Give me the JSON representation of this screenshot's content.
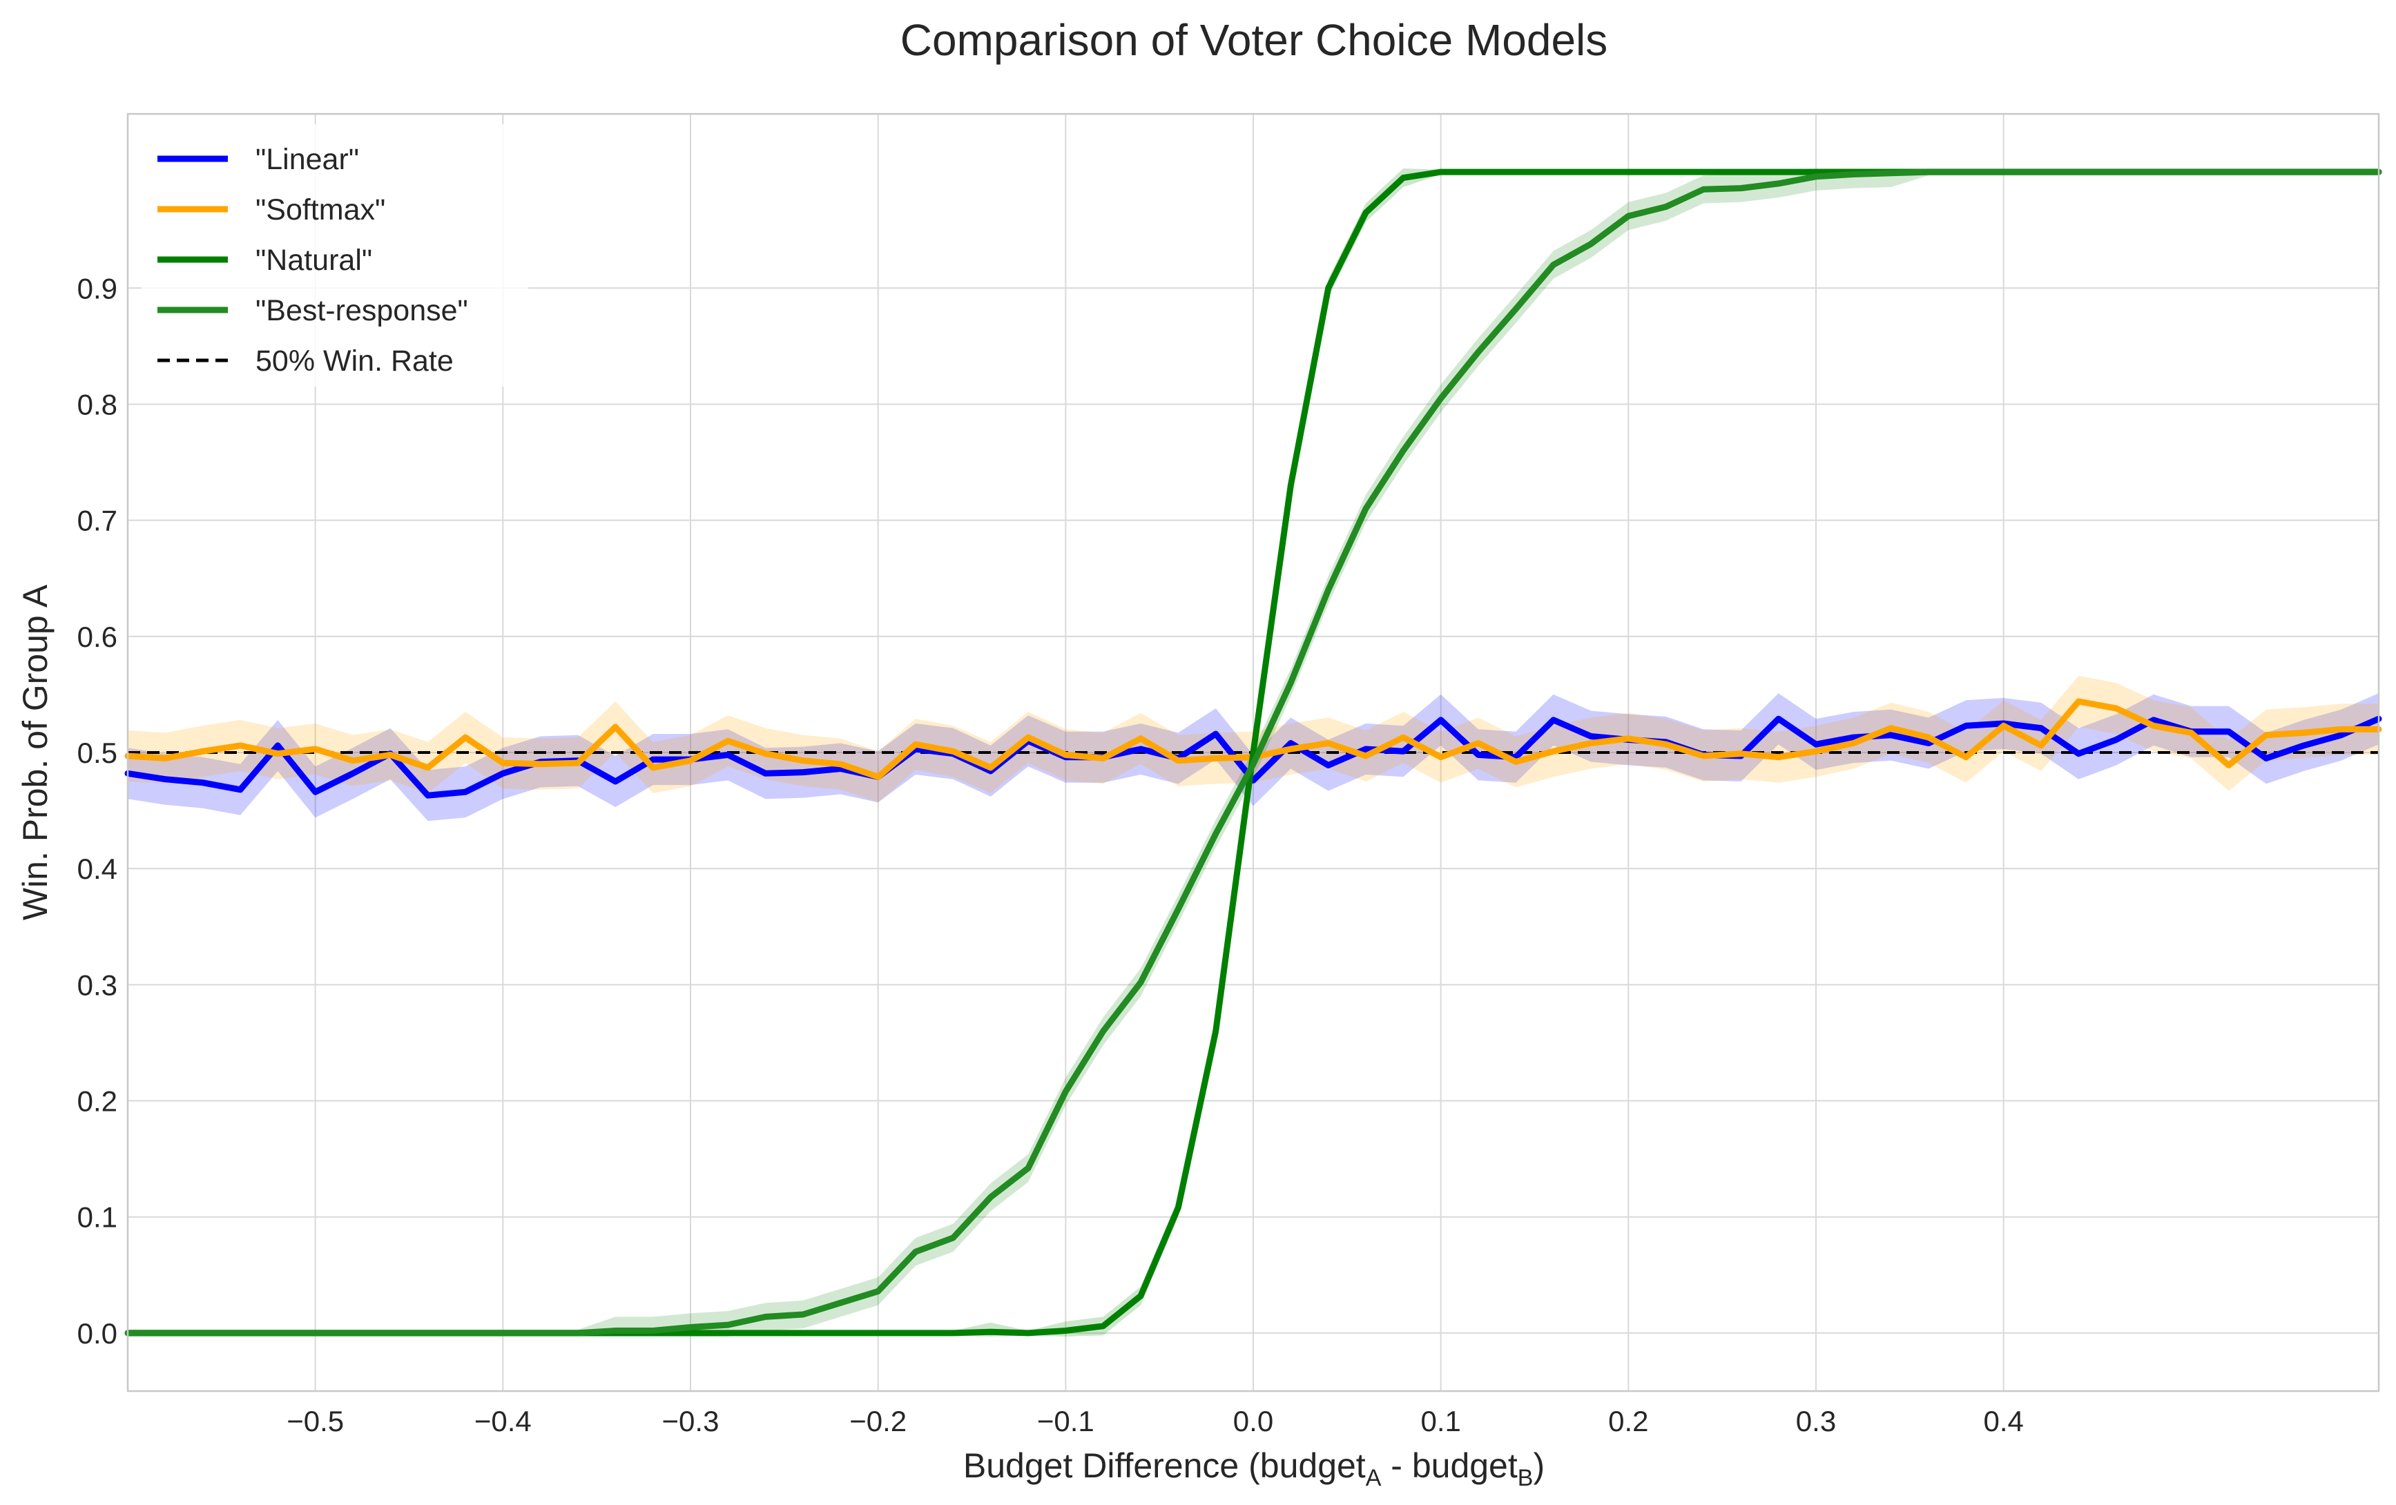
{
  "chart_data": {
    "type": "line",
    "title": "Comparison of Voter Choice Models",
    "xlabel_main": "Budget Difference (budget",
    "xlabel_sub_a": "A",
    "xlabel_mid": " - budget",
    "xlabel_sub_b": "B",
    "xlabel_end": ")",
    "ylabel": "Win. Prob. of Group A",
    "xlim": [
      -0.6,
      0.6
    ],
    "ylim": [
      -0.05,
      1.05
    ],
    "xticks": [
      -0.5,
      -0.4,
      -0.3,
      -0.2,
      -0.1,
      0.0,
      0.1,
      0.2,
      0.3,
      0.4
    ],
    "xtick_labels": [
      "−0.5",
      "−0.4",
      "−0.3",
      "−0.2",
      "−0.1",
      "0.0",
      "0.1",
      "0.2",
      "0.3",
      "0.4"
    ],
    "yticks": [
      0.0,
      0.1,
      0.2,
      0.3,
      0.4,
      0.5,
      0.6,
      0.7,
      0.8,
      0.9
    ],
    "ytick_labels": [
      "0.0",
      "0.1",
      "0.2",
      "0.3",
      "0.4",
      "0.5",
      "0.6",
      "0.7",
      "0.8",
      "0.9"
    ],
    "grid": true,
    "legend_position": "top-left",
    "x": [
      -0.6,
      -0.58,
      -0.56,
      -0.54,
      -0.52,
      -0.5,
      -0.48,
      -0.46,
      -0.44,
      -0.42,
      -0.4,
      -0.38,
      -0.36,
      -0.34,
      -0.32,
      -0.3,
      -0.28,
      -0.26,
      -0.24,
      -0.22,
      -0.2,
      -0.18,
      -0.16,
      -0.14,
      -0.12,
      -0.1,
      -0.08,
      -0.06,
      -0.04,
      -0.02,
      0.0,
      0.02,
      0.04,
      0.06,
      0.08,
      0.1,
      0.12,
      0.14,
      0.16,
      0.18,
      0.2,
      0.22,
      0.24,
      0.26,
      0.28,
      0.3,
      0.32,
      0.34,
      0.36,
      0.38,
      0.4,
      0.42,
      0.44,
      0.46,
      0.48,
      0.5,
      0.52,
      0.54,
      0.56,
      0.58,
      0.6
    ],
    "reference_line": {
      "name": "50% Win. Rate",
      "y": 0.5,
      "color": "#000000",
      "style": "dashed"
    },
    "series": [
      {
        "name": "\"Linear\"",
        "color": "#0000ff",
        "band_width": 0.022,
        "values": [
          0.482,
          0.477,
          0.474,
          0.468,
          0.506,
          0.466,
          0.482,
          0.499,
          0.463,
          0.466,
          0.482,
          0.492,
          0.493,
          0.475,
          0.494,
          0.494,
          0.498,
          0.482,
          0.483,
          0.486,
          0.479,
          0.503,
          0.499,
          0.484,
          0.51,
          0.496,
          0.496,
          0.503,
          0.495,
          0.516,
          0.476,
          0.508,
          0.489,
          0.503,
          0.501,
          0.528,
          0.498,
          0.496,
          0.528,
          0.514,
          0.511,
          0.509,
          0.498,
          0.497,
          0.529,
          0.507,
          0.513,
          0.515,
          0.508,
          0.523,
          0.525,
          0.521,
          0.499,
          0.511,
          0.528,
          0.518,
          0.518,
          0.495,
          0.506,
          0.515,
          0.529
        ]
      },
      {
        "name": "\"Softmax\"",
        "color": "#ffa500",
        "band_width": 0.022,
        "values": [
          0.497,
          0.495,
          0.501,
          0.506,
          0.499,
          0.503,
          0.493,
          0.498,
          0.487,
          0.513,
          0.491,
          0.49,
          0.491,
          0.522,
          0.487,
          0.493,
          0.51,
          0.499,
          0.493,
          0.49,
          0.479,
          0.507,
          0.501,
          0.487,
          0.513,
          0.498,
          0.495,
          0.512,
          0.493,
          0.495,
          0.496,
          0.503,
          0.508,
          0.497,
          0.513,
          0.496,
          0.508,
          0.492,
          0.501,
          0.508,
          0.512,
          0.507,
          0.497,
          0.499,
          0.496,
          0.501,
          0.508,
          0.521,
          0.513,
          0.496,
          0.523,
          0.506,
          0.544,
          0.538,
          0.523,
          0.517,
          0.489,
          0.515,
          0.517,
          0.52,
          0.52
        ]
      },
      {
        "name": "\"Natural\"",
        "color": "#008000",
        "band_width": 0.008,
        "values": [
          0.0,
          0.0,
          0.0,
          0.0,
          0.0,
          0.0,
          0.0,
          0.0,
          0.0,
          0.0,
          0.0,
          0.0,
          0.0,
          0.0,
          0.0,
          0.0,
          0.0,
          0.0,
          0.0,
          0.0,
          0.0,
          0.0,
          0.0,
          0.001,
          0.0,
          0.002,
          0.006,
          0.032,
          0.108,
          0.26,
          0.5,
          0.73,
          0.9,
          0.965,
          0.995,
          1.0,
          1.0,
          1.0,
          1.0,
          1.0,
          1.0,
          1.0,
          1.0,
          1.0,
          1.0,
          1.0,
          1.0,
          1.0,
          1.0,
          1.0,
          1.0,
          1.0,
          1.0,
          1.0,
          1.0,
          1.0,
          1.0,
          1.0,
          1.0,
          1.0,
          1.0
        ]
      },
      {
        "name": "\"Best-response\"",
        "color": "#228b22",
        "band_width": 0.012,
        "values": [
          0.0,
          0.0,
          0.0,
          0.0,
          0.0,
          0.0,
          0.0,
          0.0,
          0.0,
          0.0,
          0.0,
          0.0,
          0.0,
          0.002,
          0.002,
          0.005,
          0.007,
          0.014,
          0.016,
          0.026,
          0.036,
          0.07,
          0.082,
          0.117,
          0.142,
          0.208,
          0.26,
          0.302,
          0.365,
          0.43,
          0.49,
          0.56,
          0.64,
          0.71,
          0.76,
          0.805,
          0.845,
          0.882,
          0.92,
          0.938,
          0.962,
          0.97,
          0.985,
          0.986,
          0.99,
          0.996,
          0.998,
          0.999,
          1.0,
          1.0,
          1.0,
          1.0,
          1.0,
          1.0,
          1.0,
          1.0,
          1.0,
          1.0,
          1.0,
          1.0,
          1.0
        ]
      }
    ]
  }
}
